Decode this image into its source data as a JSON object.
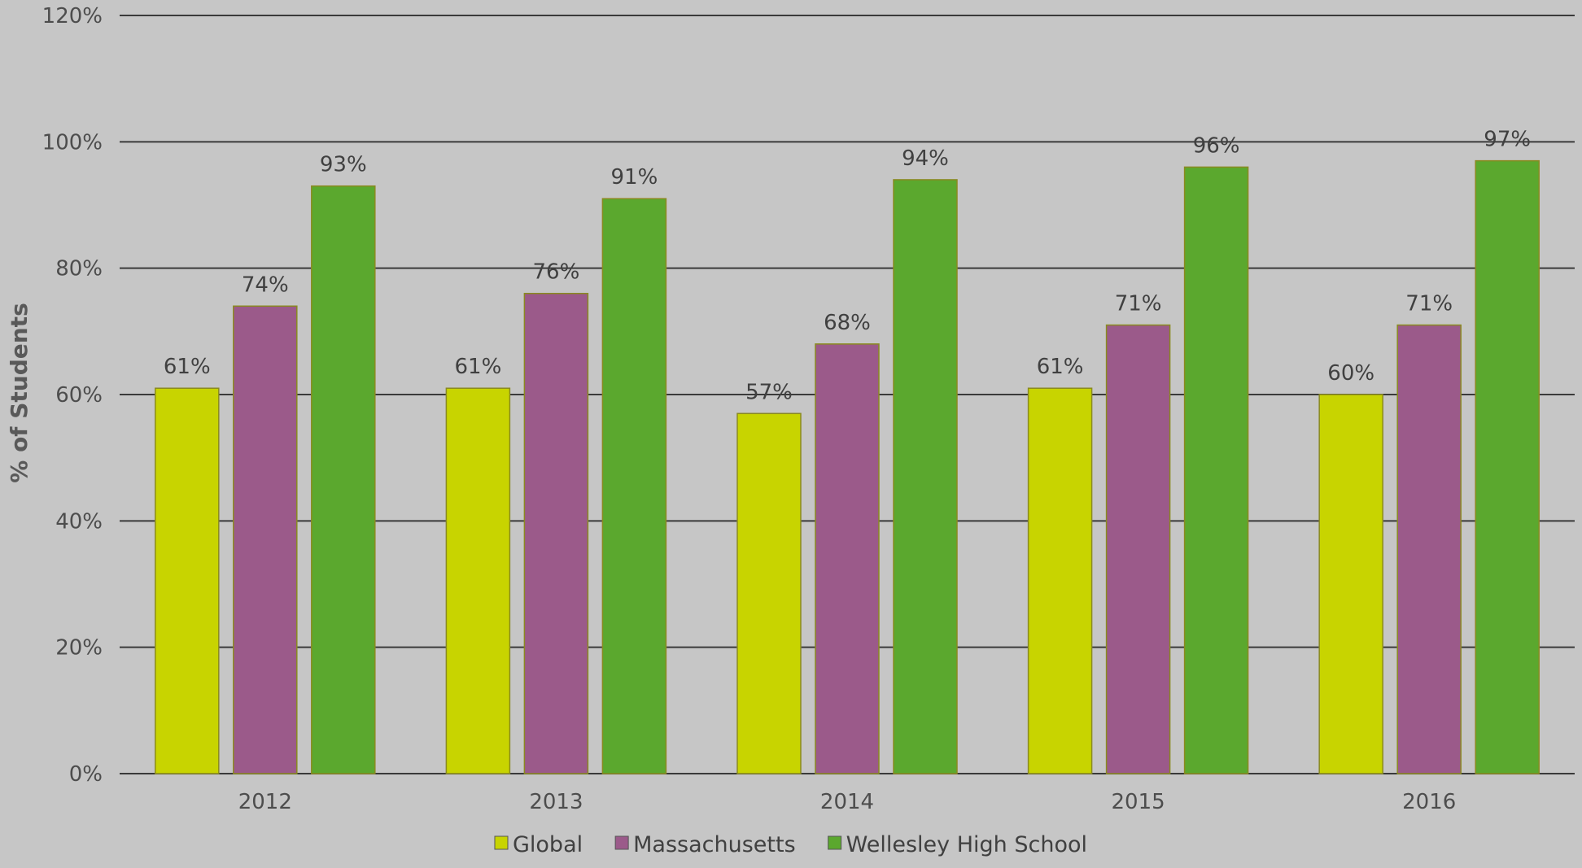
{
  "chart_data": {
    "type": "bar",
    "title": "",
    "xlabel": "",
    "ylabel": "% of Students",
    "ylim": [
      0,
      120
    ],
    "y_ticks": [
      "0%",
      "20%",
      "40%",
      "60%",
      "80%",
      "100%",
      "120%"
    ],
    "y_tick_values": [
      0,
      20,
      40,
      60,
      80,
      100,
      120
    ],
    "categories": [
      "2012",
      "2013",
      "2014",
      "2015",
      "2016"
    ],
    "series": [
      {
        "name": "Global",
        "color": "#c8d400",
        "values": [
          61,
          61,
          57,
          61,
          60
        ],
        "labels": [
          "61%",
          "61%",
          "57%",
          "61%",
          "60%"
        ]
      },
      {
        "name": "Massachusetts",
        "color": "#9b5a8a",
        "values": [
          74,
          76,
          68,
          71,
          71
        ],
        "labels": [
          "74%",
          "76%",
          "68%",
          "71%",
          "71%"
        ]
      },
      {
        "name": "Wellesley High School",
        "color": "#5ba82e",
        "values": [
          93,
          91,
          94,
          96,
          97
        ],
        "labels": [
          "93%",
          "91%",
          "94%",
          "96%",
          "97%"
        ]
      }
    ],
    "grid": true,
    "legend": "bottom"
  }
}
